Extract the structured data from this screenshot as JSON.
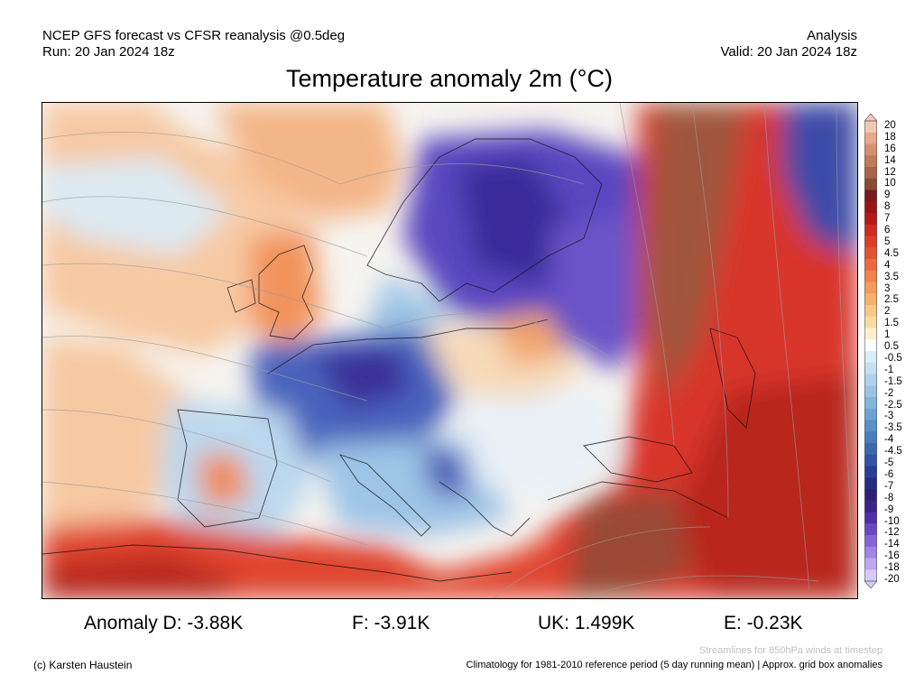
{
  "header": {
    "left_line1": "NCEP GFS forecast vs CFSR reanalysis @0.5deg",
    "left_line2": "Run: 20 Jan 2024 18z",
    "right_line1": "Analysis",
    "right_line2": "Valid: 20 Jan 2024 18z"
  },
  "title": "Temperature anomaly 2m (°C)",
  "colorbar": {
    "labels": [
      "20",
      "18",
      "16",
      "14",
      "12",
      "10",
      "9",
      "8",
      "7",
      "6",
      "5",
      "4.5",
      "4",
      "3.5",
      "3",
      "2.5",
      "2",
      "1.5",
      "1",
      "0.5",
      "-0.5",
      "-1",
      "-1.5",
      "-2",
      "-2.5",
      "-3",
      "-3.5",
      "-4",
      "-4.5",
      "-5",
      "-6",
      "-7",
      "-8",
      "-9",
      "-10",
      "-12",
      "-14",
      "-16",
      "-18",
      "-20"
    ],
    "colors": [
      "#f2c8b4",
      "#e6aa8c",
      "#d4906e",
      "#c07a58",
      "#a86446",
      "#8c4a34",
      "#7a1a1a",
      "#9a1414",
      "#b41818",
      "#cc2a20",
      "#dc3c28",
      "#e45232",
      "#ec6a3e",
      "#f0824a",
      "#f49a5a",
      "#f6b06c",
      "#f8c884",
      "#fadc9e",
      "#fcf0cc",
      "#ffffff",
      "#dcecf8",
      "#c6e0f2",
      "#b0d2ec",
      "#9ac4e4",
      "#84b4dc",
      "#6ea2d2",
      "#5a90c8",
      "#4a7cbc",
      "#3c68b0",
      "#3254a4",
      "#2a3e94",
      "#262c84",
      "#2e1e78",
      "#3a2288",
      "#5030a8",
      "#6a48c4",
      "#8466d6",
      "#9e86e2",
      "#bba8ee",
      "#d6cbf6"
    ]
  },
  "map": {
    "colors": {
      "ocean_warm": "#f7c9a3",
      "land_neutral": "#fbe4cc",
      "cold_blue": "#8ab8e0",
      "very_cold": "#6a55c8",
      "hot_red": "#d8342a",
      "very_hot": "#9a4a34"
    }
  },
  "anomalies": {
    "d": "Anomaly D: -3.88K",
    "f": "F: -3.91K",
    "uk": "UK: 1.499K",
    "e": "E: -0.23K"
  },
  "footer": {
    "streamlines": "Streamlines for 850hPa winds at timestep",
    "copyright": "(c) Karsten Haustein",
    "climatology": "Climatology for 1981-2010 reference period (5 day running mean) | Approx. grid box anomalies"
  }
}
